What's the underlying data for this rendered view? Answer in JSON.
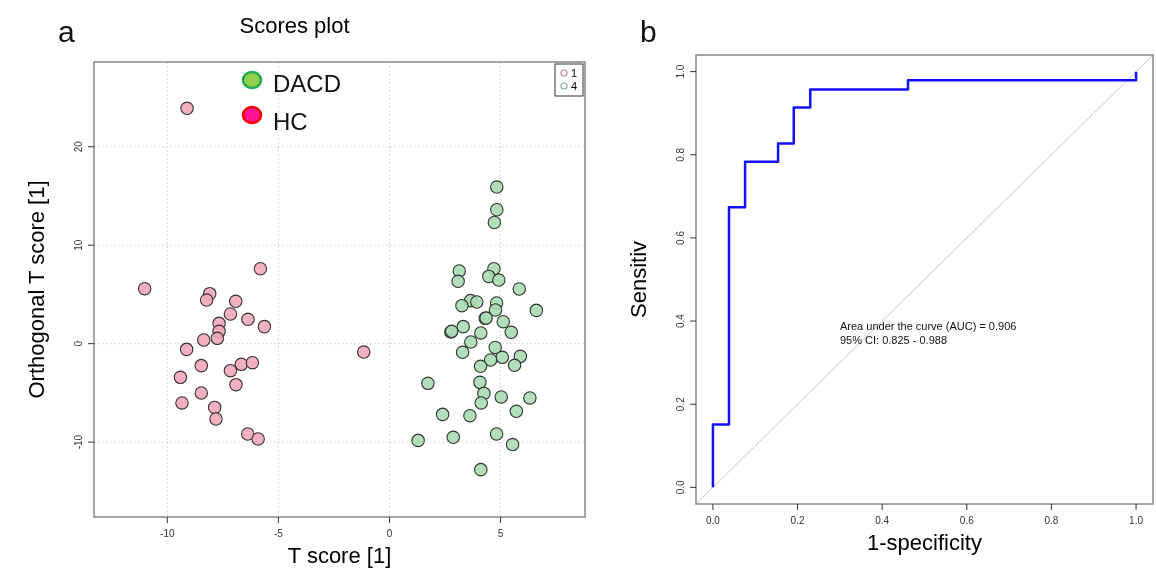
{
  "chart_data": [
    {
      "type": "scatter",
      "title": "Scores plot",
      "xlabel": "T score [1]",
      "ylabel": "Orthogonal T score [1]",
      "xlim": [
        -13.3,
        8.8
      ],
      "ylim": [
        -17.6,
        28.6
      ],
      "xticks": [
        -10,
        -5,
        0,
        5
      ],
      "yticks": [
        -10,
        0,
        10,
        20
      ],
      "grid": true,
      "legend": "top right",
      "marker": "circle",
      "annotations": [
        "a",
        "DACD",
        "HC"
      ],
      "series": [
        {
          "name": "1",
          "color": "#f2a7b8",
          "x": [
            -9.11,
            -11.02,
            -5.81,
            -8.09,
            -8.23,
            -6.92,
            -7.16,
            -6.37,
            -5.63,
            -7.67,
            -7.67,
            -7.75,
            -8.36,
            -9.13,
            -1.16,
            -8.47,
            -7.16,
            -6.67,
            -6.17,
            -9.41,
            -6.91,
            -8.47,
            -9.34,
            -7.87,
            -7.81,
            -6.38,
            -5.91
          ],
          "values": [
            23.9,
            5.58,
            7.61,
            5.08,
            4.43,
            4.3,
            3.01,
            2.47,
            1.73,
            2.06,
            1.25,
            0.54,
            0.37,
            -0.58,
            -0.85,
            -2.23,
            -2.74,
            -2.1,
            -1.93,
            -3.42,
            -4.16,
            -5.01,
            -6.02,
            -6.47,
            -7.65,
            -9.17,
            -9.68
          ]
        },
        {
          "name": "4",
          "color": "#a8dcb2",
          "x": [
            4.83,
            4.83,
            4.72,
            3.14,
            3.09,
            4.7,
            4.47,
            4.92,
            5.84,
            3.65,
            3.93,
            3.26,
            4.82,
            4.77,
            6.61,
            4.31,
            4.35,
            5.12,
            2.76,
            2.8,
            3.32,
            4.11,
            5.48,
            3.66,
            3.29,
            4.76,
            5.08,
            4.55,
            5.89,
            5.63,
            4.1,
            1.73,
            4.07,
            4.25,
            4.13,
            5.03,
            6.32,
            2.39,
            3.62,
            5.71,
            1.29,
            2.87,
            4.82,
            5.54,
            4.11
          ],
          "values": [
            15.9,
            13.6,
            12.3,
            7.38,
            6.33,
            7.61,
            6.83,
            6.46,
            5.55,
            4.37,
            4.23,
            3.86,
            4.13,
            3.42,
            3.38,
            2.57,
            2.6,
            2.23,
            1.19,
            1.25,
            1.73,
            1.09,
            1.15,
            0.17,
            -0.88,
            -0.38,
            -1.39,
            -1.66,
            -1.29,
            -2.2,
            -2.3,
            -4.03,
            -3.93,
            -5.05,
            -6.02,
            -5.41,
            -5.51,
            -7.18,
            -7.31,
            -6.87,
            -9.82,
            -9.51,
            -9.17,
            -10.25,
            -12.79
          ]
        }
      ]
    },
    {
      "type": "line",
      "xlabel": "1-specificity",
      "ylabel": "Sensitiv",
      "xlim": [
        -0.04,
        1.04
      ],
      "ylim": [
        -0.04,
        1.04
      ],
      "xticks": [
        {
          "value": 0,
          "label": "0.0"
        },
        {
          "value": 0.2,
          "label": "0.2"
        },
        {
          "value": 0.4,
          "label": "0.4"
        },
        {
          "value": 0.6,
          "label": "0.6"
        },
        {
          "value": 0.8,
          "label": "0.8"
        },
        {
          "value": 1,
          "label": "1.0"
        }
      ],
      "yticks": [
        {
          "value": 0,
          "label": "0.0"
        },
        {
          "value": 0.2,
          "label": "0.2"
        },
        {
          "value": 0.4,
          "label": "0.4"
        },
        {
          "value": 0.6,
          "label": "0.6"
        },
        {
          "value": 0.8,
          "label": "0.8"
        },
        {
          "value": 1,
          "label": "1.0"
        }
      ],
      "grid": false,
      "legend": false,
      "line_style": "solid",
      "annotations": [
        "b",
        "Area under the curve (AUC) = 0.906",
        "95% CI: 0.825 - 0.988"
      ],
      "series": [
        {
          "color": "#c8c8c8",
          "x": [
            -0.04,
            1.04
          ],
          "values": [
            -0.04,
            1.04
          ]
        },
        {
          "color": "#1010ff",
          "x": [
            0,
            0,
            0.038,
            0.038,
            0.076,
            0.076,
            0.154,
            0.154,
            0.191,
            0.191,
            0.23,
            0.23,
            0.461,
            0.461,
            1,
            1
          ],
          "values": [
            0,
            0.151,
            0.151,
            0.674,
            0.674,
            0.783,
            0.783,
            0.827,
            0.827,
            0.914,
            0.914,
            0.957,
            0.957,
            0.979,
            0.979,
            1
          ]
        }
      ]
    }
  ]
}
